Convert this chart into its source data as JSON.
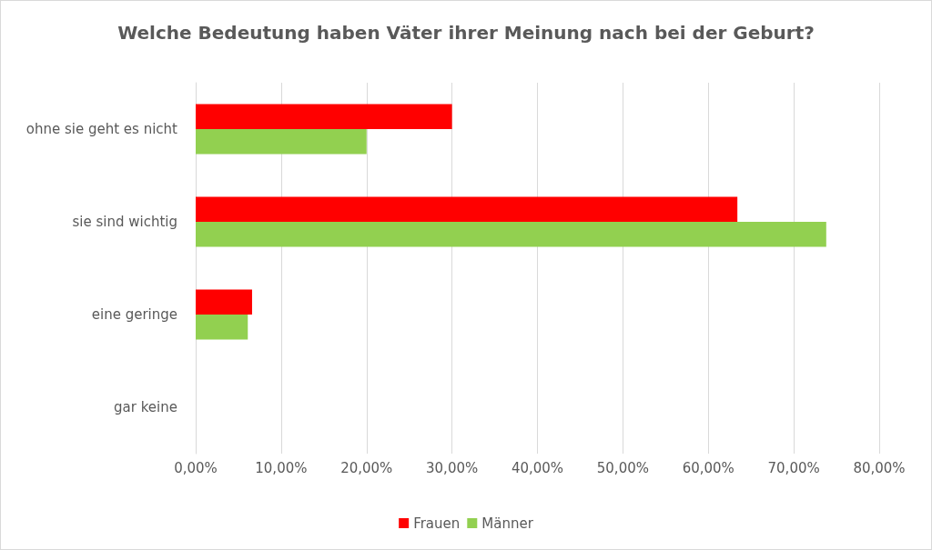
{
  "chart_data": {
    "type": "bar",
    "orientation": "horizontal",
    "title": "Welche Bedeutung haben Väter ihrer Meinung nach bei der Geburt?",
    "categories": [
      "ohne sie geht es nicht",
      "sie sind wichtig",
      "eine geringe",
      "gar keine"
    ],
    "series": [
      {
        "name": "Frauen",
        "color": "#ff0000",
        "values": [
          30,
          63.4,
          6.6,
          0
        ]
      },
      {
        "name": "Männer",
        "color": "#92d050",
        "values": [
          20,
          73.8,
          6.1,
          0
        ]
      }
    ],
    "xlim": [
      0,
      80
    ],
    "xticks": [
      {
        "value": 0,
        "label": "0,00%"
      },
      {
        "value": 10,
        "label": "10,00%"
      },
      {
        "value": 20,
        "label": "20,00%"
      },
      {
        "value": 30,
        "label": "30,00%"
      },
      {
        "value": 40,
        "label": "40,00%"
      },
      {
        "value": 50,
        "label": "50,00%"
      },
      {
        "value": 60,
        "label": "60,00%"
      },
      {
        "value": 70,
        "label": "70,00%"
      },
      {
        "value": 80,
        "label": "80,00%"
      }
    ],
    "grid": "x",
    "legend": "bottom"
  }
}
